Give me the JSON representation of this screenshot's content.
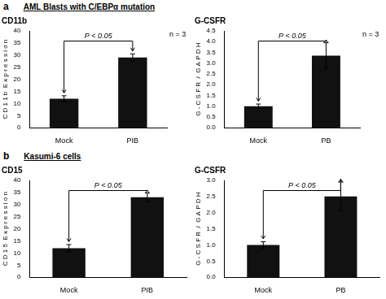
{
  "chart_data": [
    {
      "type": "bar",
      "title": "CD11b",
      "subtitle": [
        "a",
        "AML Blasts with C/EBPα mutation"
      ],
      "ylabel": "C D 1 1 b  E x p r e s s i o n",
      "categories": [
        "Mock",
        "PIB"
      ],
      "values": [
        12,
        29
      ],
      "errors": [
        1.2,
        1.5
      ],
      "color": "#111111",
      "ylim": [
        0,
        40
      ],
      "yticks": [
        0,
        5,
        10,
        15,
        20,
        25,
        30,
        35,
        40
      ],
      "grid": false,
      "annotations": [
        "P < 0.05",
        "n = 3"
      ]
    },
    {
      "type": "bar",
      "title": "G-CSFR",
      "ylabel": "G - C S F R  /  G A P D H",
      "categories": [
        "Mock",
        "PB"
      ],
      "values": [
        1.0,
        3.35
      ],
      "errors": [
        0.1,
        0.6
      ],
      "color": "#111111",
      "ylim": [
        0,
        4.5
      ],
      "yticks": [
        {
          "value": 0,
          "label": "0.0"
        },
        0.5,
        {
          "value": 1,
          "label": "1.0"
        },
        1.5,
        {
          "value": 2,
          "label": "2.0"
        },
        2.5,
        {
          "value": 3,
          "label": "3.0"
        },
        3.5,
        {
          "value": 4,
          "label": "4.0"
        },
        4.5
      ],
      "grid": false,
      "annotations": [
        "P < 0.05",
        "n = 3"
      ]
    },
    {
      "type": "bar",
      "title": "CD15",
      "subtitle": [
        "b",
        "Kasumi-6 cells"
      ],
      "ylabel": "C D 1 5  E x p r e s s i o n",
      "categories": [
        "Mock",
        "PIB"
      ],
      "values": [
        12,
        33
      ],
      "errors": [
        1.5,
        1.8
      ],
      "color": "#111111",
      "ylim": [
        0,
        40
      ],
      "yticks": [
        0,
        5,
        10,
        15,
        20,
        25,
        30,
        35,
        40
      ],
      "grid": false,
      "annotations": [
        "P < 0.05"
      ]
    },
    {
      "type": "bar",
      "title": "G-CSFR",
      "ylabel": "G - C S F R  /  G A P D H",
      "categories": [
        "Mock",
        "PB"
      ],
      "values": [
        1.0,
        2.5
      ],
      "errors": [
        0.1,
        0.45
      ],
      "color": "#111111",
      "ylim": [
        0,
        3
      ],
      "yticks": [
        {
          "value": 0,
          "label": "0.0"
        },
        0.5,
        {
          "value": 1,
          "label": "1.0"
        },
        1.5,
        {
          "value": 2,
          "label": "2.0"
        },
        2.5,
        {
          "value": 3,
          "label": "3.0"
        }
      ],
      "grid": false,
      "annotations": [
        "P < 0.05"
      ]
    }
  ]
}
